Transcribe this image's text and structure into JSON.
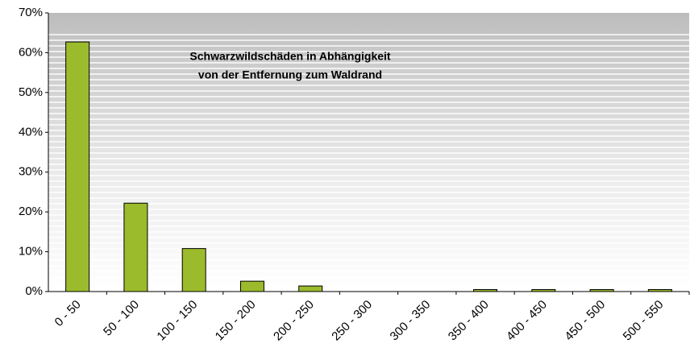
{
  "chart_data": {
    "type": "bar",
    "title": [
      "Schwarzwildschäden in Abhängigkeit",
      "von der Entfernung zum Waldrand"
    ],
    "categories": [
      "0 - 50",
      "50 - 100",
      "100 - 150",
      "150 - 200",
      "200 - 250",
      "250 - 300",
      "300 - 350",
      "350 - 400",
      "400 - 450",
      "450 - 500",
      "500 - 550"
    ],
    "values": [
      62.7,
      22.2,
      10.8,
      2.6,
      1.4,
      0,
      0,
      0.5,
      0.5,
      0.5,
      0.5
    ],
    "color": "#9bbb2c",
    "ylim": [
      0,
      70
    ],
    "yticks": [
      {
        "value": 0,
        "label": "0%"
      },
      {
        "value": 10,
        "label": "10%"
      },
      {
        "value": 20,
        "label": "20%"
      },
      {
        "value": 30,
        "label": "30%"
      },
      {
        "value": 40,
        "label": "40%"
      },
      {
        "value": 50,
        "label": "50%"
      },
      {
        "value": 60,
        "label": "60%"
      },
      {
        "value": 70,
        "label": "70%"
      }
    ]
  }
}
